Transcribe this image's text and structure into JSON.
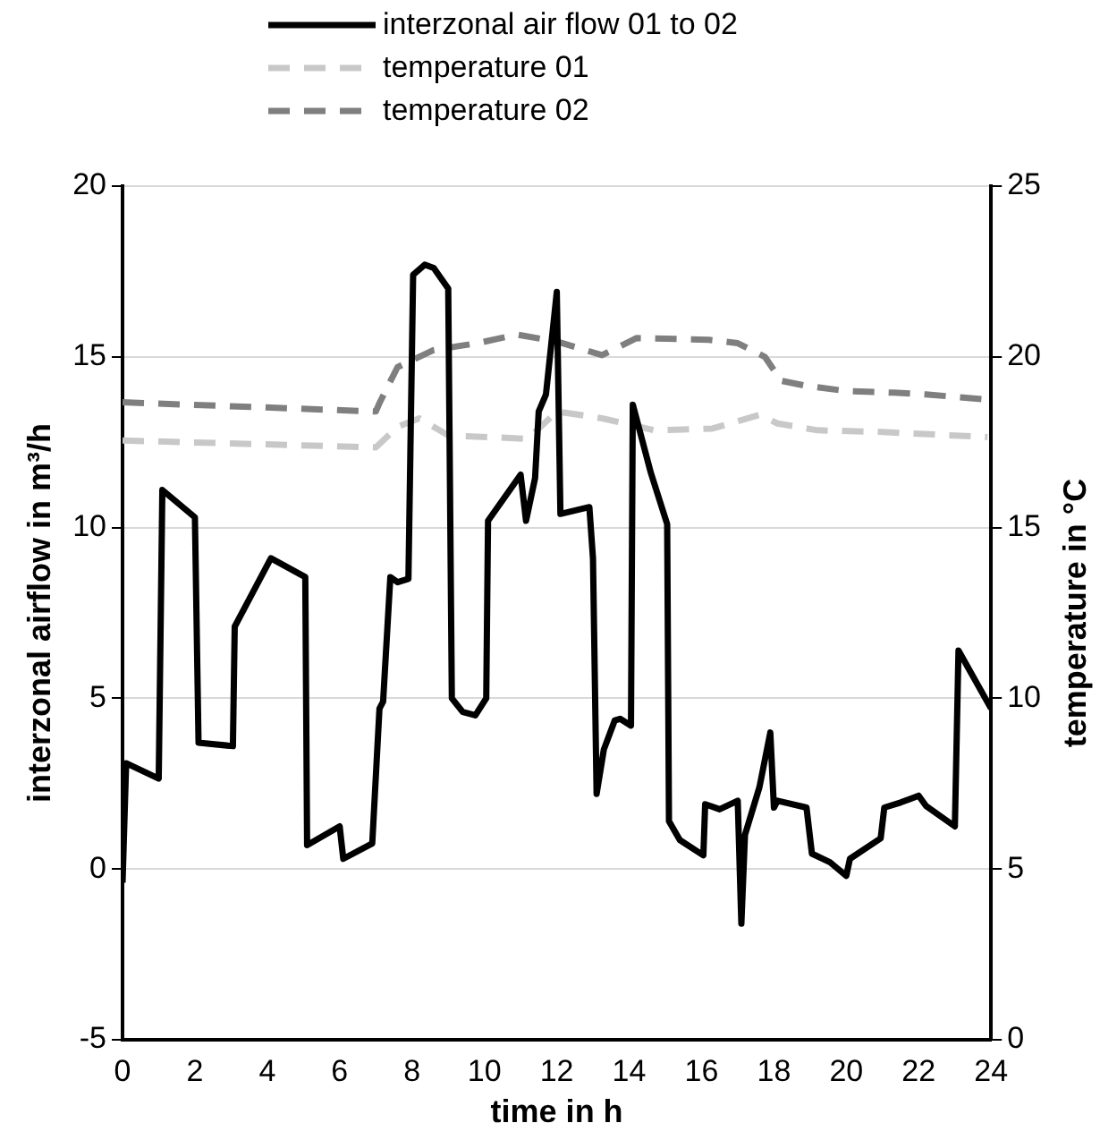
{
  "chart_data": {
    "type": "line",
    "xlabel": "time in h",
    "ylabel": "interzonal airflow in m³/h",
    "y2label": "temperature in °C",
    "xlim": [
      0,
      24
    ],
    "xticks": [
      0,
      2,
      4,
      6,
      8,
      10,
      12,
      14,
      16,
      18,
      20,
      22,
      24
    ],
    "ylim": [
      -5,
      20
    ],
    "yticks": [
      -5,
      0,
      5,
      10,
      15,
      20
    ],
    "y2lim": [
      0,
      25
    ],
    "y2ticks": [
      0,
      5,
      10,
      15,
      20,
      25
    ],
    "grid": "y",
    "legend": "top",
    "marker": "none",
    "series": [
      {
        "name": "interzonal air flow 01 to 02",
        "color": "#000000",
        "line_style": "solid",
        "x": [
          0,
          0.1,
          1.0,
          1.1,
          2.0,
          2.1,
          3.05,
          3.1,
          3.55,
          4.1,
          5.05,
          5.1,
          6.0,
          6.1,
          6.9,
          7.1,
          7.2,
          7.4,
          7.6,
          7.9,
          8.03,
          8.35,
          8.6,
          9.0,
          9.1,
          9.4,
          9.75,
          10.05,
          10.1,
          11.0,
          11.15,
          11.4,
          11.5,
          11.7,
          12.0,
          12.1,
          12.9,
          13.0,
          13.1,
          13.3,
          13.6,
          13.75,
          14.05,
          14.1,
          14.6,
          15.05,
          15.1,
          15.4,
          16.05,
          16.1,
          16.5,
          17.0,
          17.1,
          17.2,
          17.6,
          17.9,
          18.0,
          18.1,
          18.9,
          19.05,
          19.55,
          20.0,
          20.1,
          20.95,
          21.05,
          21.5,
          22.0,
          22.2,
          23.0,
          23.1,
          24.0
        ],
        "values": [
          -0.4,
          3.1,
          2.65,
          11.1,
          10.3,
          3.7,
          3.6,
          7.1,
          8.0,
          9.1,
          8.55,
          0.7,
          1.25,
          0.3,
          0.75,
          4.7,
          4.9,
          8.55,
          8.4,
          8.5,
          17.4,
          17.7,
          17.6,
          17.0,
          5.0,
          4.6,
          4.5,
          5.0,
          10.2,
          11.55,
          10.2,
          11.45,
          13.4,
          13.9,
          16.9,
          10.4,
          10.6,
          9.1,
          2.2,
          3.5,
          4.35,
          4.4,
          4.2,
          13.6,
          11.6,
          10.1,
          1.4,
          0.85,
          0.4,
          1.9,
          1.75,
          2.0,
          -1.6,
          1.0,
          2.4,
          4.0,
          1.8,
          2.0,
          1.8,
          0.45,
          0.2,
          -0.2,
          0.3,
          0.9,
          1.8,
          1.95,
          2.15,
          1.85,
          1.25,
          6.4,
          4.7
        ]
      },
      {
        "name": "temperature 01",
        "color": "#c8c8c8",
        "line_style": "dashed",
        "axis": "y2",
        "x": [
          0,
          7,
          7.6,
          8.2,
          9.0,
          11.2,
          12.0,
          13.25,
          14.7,
          16.3,
          17.6,
          18.1,
          19.2,
          21.0,
          23.9
        ],
        "values": [
          17.55,
          17.35,
          17.95,
          18.2,
          17.7,
          17.6,
          18.4,
          18.2,
          17.85,
          17.9,
          18.3,
          18.05,
          17.85,
          17.8,
          17.65
        ]
      },
      {
        "name": "temperature 02",
        "color": "#7f7f7f",
        "line_style": "dashed",
        "axis": "y2",
        "x": [
          0,
          7,
          7.1,
          7.6,
          8.6,
          9.8,
          10.9,
          12.0,
          13.25,
          14.2,
          16.2,
          17.0,
          17.75,
          18.2,
          18.9,
          20.0,
          21.3,
          22.2,
          23.9
        ],
        "values": [
          18.67,
          18.4,
          18.65,
          19.7,
          20.2,
          20.4,
          20.65,
          20.45,
          20.05,
          20.55,
          20.5,
          20.4,
          20.0,
          19.3,
          19.15,
          19.0,
          18.95,
          18.9,
          18.75
        ]
      }
    ]
  }
}
